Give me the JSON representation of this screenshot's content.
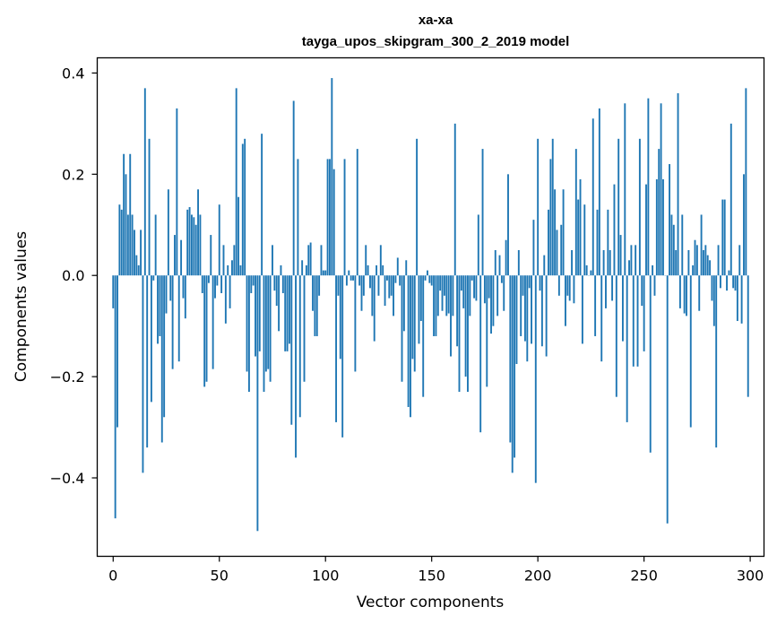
{
  "chart_data": {
    "type": "bar",
    "title": "xa-xa",
    "subtitle": "tayga_upos_skipgram_300_2_2019 model",
    "xlabel": "Vector components",
    "ylabel": "Components values",
    "xlim": [
      -7.5,
      306.5
    ],
    "ylim": [
      -0.555,
      0.43
    ],
    "xticks": [
      0,
      50,
      100,
      150,
      200,
      250,
      300
    ],
    "xtick_labels": [
      "0",
      "50",
      "100",
      "150",
      "200",
      "250",
      "300"
    ],
    "yticks": [
      0.4,
      0.2,
      0.0,
      -0.2,
      -0.4
    ],
    "ytick_labels": [
      "0.4",
      "0.2",
      "0.0",
      "−0.2",
      "−0.4"
    ],
    "bar_color": "#1f77b4",
    "grid": false,
    "values": [
      -0.065,
      -0.48,
      -0.3,
      0.14,
      0.13,
      0.24,
      0.2,
      0.12,
      0.24,
      0.12,
      0.09,
      0.04,
      0.02,
      0.09,
      -0.39,
      0.37,
      -0.34,
      0.27,
      -0.25,
      -0.01,
      0.12,
      -0.135,
      -0.12,
      -0.33,
      -0.28,
      -0.075,
      0.17,
      -0.05,
      -0.185,
      0.08,
      0.33,
      -0.17,
      0.07,
      -0.045,
      -0.085,
      0.13,
      0.135,
      0.12,
      0.115,
      0.1,
      0.17,
      0.12,
      -0.035,
      -0.22,
      -0.21,
      -0.015,
      0.08,
      -0.185,
      -0.045,
      -0.02,
      0.14,
      -0.035,
      0.06,
      -0.095,
      0.02,
      -0.065,
      0.03,
      0.06,
      0.37,
      0.155,
      0.02,
      0.26,
      0.27,
      -0.19,
      -0.23,
      -0.035,
      -0.02,
      -0.16,
      -0.505,
      -0.15,
      0.28,
      -0.23,
      -0.19,
      -0.185,
      -0.21,
      0.06,
      -0.03,
      -0.06,
      -0.11,
      0.02,
      -0.035,
      -0.15,
      -0.15,
      -0.135,
      -0.295,
      0.345,
      -0.36,
      0.23,
      -0.28,
      0.03,
      -0.21,
      0.02,
      0.06,
      0.065,
      -0.07,
      -0.12,
      -0.12,
      -0.04,
      0.06,
      0.01,
      0.01,
      0.23,
      0.23,
      0.39,
      0.21,
      -0.29,
      -0.04,
      -0.165,
      -0.32,
      0.23,
      -0.02,
      0.01,
      -0.01,
      -0.01,
      -0.19,
      0.25,
      -0.02,
      -0.07,
      -0.04,
      0.06,
      0.02,
      -0.025,
      -0.08,
      -0.13,
      0.02,
      -0.04,
      0.06,
      0.02,
      -0.06,
      -0.01,
      -0.045,
      -0.04,
      -0.08,
      -0.015,
      0.035,
      -0.02,
      -0.21,
      -0.11,
      0.03,
      -0.26,
      -0.28,
      -0.165,
      -0.19,
      0.27,
      -0.135,
      -0.09,
      -0.24,
      -0.01,
      0.01,
      -0.015,
      -0.02,
      -0.12,
      -0.12,
      -0.08,
      -0.03,
      -0.07,
      -0.04,
      -0.08,
      -0.075,
      -0.16,
      -0.08,
      0.3,
      -0.14,
      -0.23,
      -0.03,
      -0.065,
      -0.2,
      -0.23,
      -0.08,
      -0.01,
      -0.045,
      -0.05,
      0.12,
      -0.31,
      0.25,
      -0.055,
      -0.22,
      -0.045,
      -0.115,
      -0.1,
      0.05,
      -0.08,
      0.04,
      -0.015,
      -0.07,
      0.07,
      0.2,
      -0.33,
      -0.39,
      -0.36,
      -0.175,
      0.05,
      -0.12,
      -0.04,
      -0.13,
      -0.17,
      -0.025,
      -0.135,
      0.11,
      -0.41,
      0.27,
      -0.03,
      -0.14,
      0.04,
      -0.16,
      0.13,
      0.23,
      0.27,
      0.17,
      0.09,
      -0.04,
      0.1,
      0.17,
      -0.1,
      -0.04,
      -0.05,
      0.05,
      -0.055,
      0.25,
      0.15,
      0.19,
      -0.135,
      0.14,
      0.02,
      0.0,
      0.01,
      0.31,
      -0.12,
      0.13,
      0.33,
      -0.17,
      0.05,
      -0.065,
      0.13,
      0.05,
      -0.05,
      0.18,
      -0.24,
      0.27,
      0.08,
      -0.13,
      0.34,
      -0.29,
      0.03,
      0.06,
      -0.18,
      0.06,
      -0.18,
      0.27,
      -0.06,
      -0.15,
      0.18,
      0.35,
      -0.35,
      0.02,
      -0.04,
      0.19,
      0.25,
      0.34,
      0.19,
      0.0,
      -0.49,
      0.22,
      0.12,
      0.1,
      0.05,
      0.36,
      -0.065,
      0.12,
      -0.075,
      -0.08,
      0.05,
      -0.3,
      0.02,
      0.07,
      0.06,
      -0.07,
      0.12,
      0.05,
      0.06,
      0.04,
      0.03,
      -0.05,
      -0.1,
      -0.34,
      0.06,
      -0.025,
      0.15,
      0.15,
      -0.03,
      0.01,
      0.3,
      -0.025,
      -0.03,
      -0.09,
      0.06,
      -0.095,
      0.2,
      0.37,
      -0.24
    ]
  }
}
